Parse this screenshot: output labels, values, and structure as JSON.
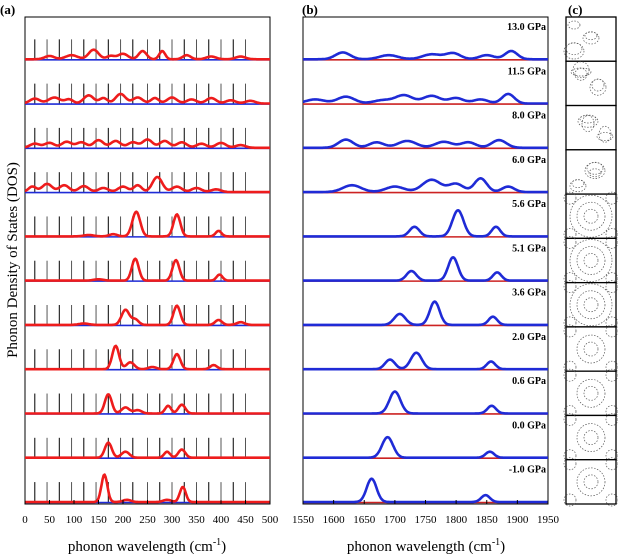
{
  "chart_data": {
    "type": "line",
    "ylabel": "Phonon Density of States (DOS)",
    "colors": {
      "series_a": "#ee1c1c",
      "series_b": "#1f2bd6",
      "baseline_a": "#1f2bd6",
      "baseline_b": "#cc2222",
      "axis": "#000000"
    },
    "panels": [
      {
        "id": "a",
        "label": "(a)",
        "xlabel_text": "phonon wavelength (cm",
        "xlabel_unit": "-1",
        "xlabel_close": ")",
        "xlim": [
          0,
          500
        ],
        "ticks": [
          0,
          50,
          100,
          150,
          200,
          250,
          300,
          350,
          400,
          450,
          500
        ],
        "mode_lines": [
          20,
          45,
          70,
          95,
          120,
          145,
          170,
          195,
          220,
          250,
          275,
          300,
          325,
          350,
          375,
          400,
          425,
          450
        ],
        "rows": [
          {
            "pressure": "13.0 GPa",
            "peaks": [
              [
                50,
                0.12,
                10
              ],
              [
                95,
                0.15,
                12
              ],
              [
                140,
                0.35,
                10
              ],
              [
                175,
                0.12,
                8
              ],
              [
                200,
                0.2,
                10
              ],
              [
                240,
                0.3,
                8
              ],
              [
                280,
                0.3,
                6
              ],
              [
                330,
                0.15,
                8
              ],
              [
                380,
                0.1,
                10
              ],
              [
                440,
                0.1,
                10
              ]
            ]
          },
          {
            "pressure": "11.5 GPa",
            "peaks": [
              [
                20,
                0.18,
                10
              ],
              [
                60,
                0.22,
                12
              ],
              [
                90,
                0.15,
                8
              ],
              [
                130,
                0.3,
                10
              ],
              [
                160,
                0.2,
                8
              ],
              [
                195,
                0.35,
                10
              ],
              [
                230,
                0.22,
                10
              ],
              [
                265,
                0.2,
                8
              ],
              [
                300,
                0.22,
                10
              ],
              [
                340,
                0.15,
                10
              ],
              [
                380,
                0.2,
                10
              ],
              [
                420,
                0.12,
                10
              ],
              [
                460,
                0.1,
                10
              ]
            ]
          },
          {
            "pressure": "8.0 GPa",
            "peaks": [
              [
                20,
                0.15,
                10
              ],
              [
                50,
                0.18,
                10
              ],
              [
                85,
                0.22,
                10
              ],
              [
                115,
                0.2,
                10
              ],
              [
                150,
                0.28,
                10
              ],
              [
                185,
                0.25,
                10
              ],
              [
                220,
                0.2,
                10
              ],
              [
                250,
                0.3,
                10
              ],
              [
                285,
                0.25,
                10
              ],
              [
                320,
                0.2,
                10
              ],
              [
                360,
                0.15,
                10
              ],
              [
                400,
                0.18,
                10
              ],
              [
                440,
                0.1,
                10
              ]
            ]
          },
          {
            "pressure": "6.0 GPa",
            "peaks": [
              [
                15,
                0.2,
                8
              ],
              [
                45,
                0.3,
                10
              ],
              [
                80,
                0.25,
                10
              ],
              [
                120,
                0.22,
                10
              ],
              [
                160,
                0.15,
                10
              ],
              [
                200,
                0.2,
                10
              ],
              [
                230,
                0.25,
                8
              ],
              [
                270,
                0.55,
                10
              ],
              [
                310,
                0.2,
                10
              ],
              [
                350,
                0.15,
                10
              ],
              [
                390,
                0.1,
                10
              ]
            ]
          },
          {
            "pressure": "5.6 GPa",
            "peaks": [
              [
                227,
                0.9,
                8
              ],
              [
                310,
                0.8,
                7
              ],
              [
                395,
                0.2,
                6
              ],
              [
                180,
                0.08,
                8
              ],
              [
                130,
                0.05,
                10
              ]
            ]
          },
          {
            "pressure": "5.1 GPa",
            "peaks": [
              [
                225,
                0.8,
                7
              ],
              [
                308,
                0.75,
                7
              ],
              [
                397,
                0.22,
                6
              ],
              [
                150,
                0.05,
                10
              ]
            ]
          },
          {
            "pressure": "3.6 GPa",
            "peaks": [
              [
                205,
                0.55,
                8
              ],
              [
                225,
                0.2,
                7
              ],
              [
                310,
                0.7,
                7
              ],
              [
                395,
                0.18,
                7
              ],
              [
                440,
                0.1,
                8
              ],
              [
                120,
                0.05,
                10
              ]
            ]
          },
          {
            "pressure": "2.0 GPa",
            "peaks": [
              [
                185,
                0.85,
                7
              ],
              [
                215,
                0.25,
                8
              ],
              [
                310,
                0.55,
                7
              ],
              [
                385,
                0.15,
                7
              ],
              [
                260,
                0.08,
                8
              ]
            ]
          },
          {
            "pressure": "0.6 GPa",
            "peaks": [
              [
                170,
                0.7,
                7
              ],
              [
                205,
                0.22,
                8
              ],
              [
                292,
                0.28,
                6
              ],
              [
                320,
                0.32,
                7
              ],
              [
                230,
                0.12,
                8
              ]
            ]
          },
          {
            "pressure": "0.0 GPa",
            "peaks": [
              [
                170,
                0.55,
                7
              ],
              [
                205,
                0.22,
                8
              ],
              [
                290,
                0.22,
                6
              ],
              [
                320,
                0.3,
                7
              ]
            ]
          },
          {
            "pressure": "-1.0 GPa",
            "peaks": [
              [
                162,
                1.0,
                6
              ],
              [
                208,
                0.08,
                8
              ],
              [
                322,
                0.55,
                6
              ],
              [
                290,
                0.08,
                8
              ]
            ]
          }
        ]
      },
      {
        "id": "b",
        "label": "(b)",
        "xlabel_text": "phonon wavelength (cm",
        "xlabel_unit": "-1",
        "xlabel_close": ")",
        "xlim": [
          1550,
          1950
        ],
        "ticks": [
          1550,
          1600,
          1650,
          1700,
          1750,
          1800,
          1850,
          1900,
          1950
        ],
        "rows": [
          {
            "pressure": "13.0 GPa",
            "peaks": [
              [
                1615,
                0.25,
                12
              ],
              [
                1690,
                0.15,
                15
              ],
              [
                1760,
                0.18,
                15
              ],
              [
                1795,
                0.22,
                12
              ],
              [
                1850,
                0.15,
                12
              ],
              [
                1890,
                0.3,
                10
              ]
            ]
          },
          {
            "pressure": "11.5 GPa",
            "peaks": [
              [
                1570,
                0.15,
                15
              ],
              [
                1620,
                0.25,
                14
              ],
              [
                1680,
                0.12,
                15
              ],
              [
                1715,
                0.3,
                14
              ],
              [
                1760,
                0.28,
                14
              ],
              [
                1800,
                0.2,
                12
              ],
              [
                1840,
                0.15,
                12
              ],
              [
                1885,
                0.35,
                10
              ]
            ]
          },
          {
            "pressure": "8.0 GPa",
            "peaks": [
              [
                1620,
                0.3,
                12
              ],
              [
                1670,
                0.2,
                12
              ],
              [
                1720,
                0.25,
                15
              ],
              [
                1780,
                0.22,
                14
              ],
              [
                1820,
                0.2,
                12
              ],
              [
                1870,
                0.28,
                12
              ]
            ]
          },
          {
            "pressure": "6.0 GPa",
            "peaks": [
              [
                1630,
                0.25,
                15
              ],
              [
                1700,
                0.2,
                15
              ],
              [
                1760,
                0.45,
                15
              ],
              [
                1800,
                0.3,
                12
              ],
              [
                1840,
                0.5,
                10
              ],
              [
                1885,
                0.2,
                10
              ]
            ]
          },
          {
            "pressure": "5.6 GPa",
            "peaks": [
              [
                1732,
                0.35,
                8
              ],
              [
                1803,
                0.95,
                9
              ],
              [
                1865,
                0.35,
                7
              ]
            ]
          },
          {
            "pressure": "5.1 GPa",
            "peaks": [
              [
                1727,
                0.35,
                8
              ],
              [
                1795,
                0.85,
                8
              ],
              [
                1867,
                0.3,
                7
              ]
            ]
          },
          {
            "pressure": "3.6 GPa",
            "peaks": [
              [
                1708,
                0.4,
                9
              ],
              [
                1765,
                0.85,
                8
              ],
              [
                1860,
                0.3,
                7
              ]
            ]
          },
          {
            "pressure": "2.0 GPa",
            "peaks": [
              [
                1692,
                0.35,
                8
              ],
              [
                1735,
                0.6,
                9
              ],
              [
                1857,
                0.28,
                7
              ]
            ]
          },
          {
            "pressure": "0.6 GPa",
            "peaks": [
              [
                1700,
                0.8,
                9
              ],
              [
                1858,
                0.28,
                7
              ]
            ]
          },
          {
            "pressure": "0.0 GPa",
            "peaks": [
              [
                1688,
                0.75,
                9
              ],
              [
                1855,
                0.22,
                7
              ]
            ]
          },
          {
            "pressure": "-1.0 GPa",
            "peaks": [
              [
                1662,
                0.85,
                8
              ],
              [
                1848,
                0.25,
                7
              ]
            ]
          }
        ]
      },
      {
        "id": "c",
        "label": "(c)",
        "description": "nanoparticle vibration mode patterns, one per pressure row"
      }
    ]
  }
}
